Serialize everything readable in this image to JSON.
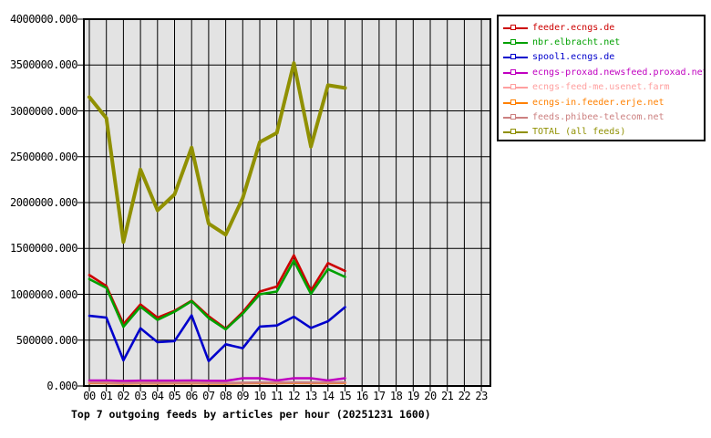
{
  "chart_data": {
    "type": "line",
    "title": "Top 7 outgoing feeds by articles per hour (20251231 1600)",
    "x": [
      "00",
      "01",
      "02",
      "03",
      "04",
      "05",
      "06",
      "07",
      "08",
      "09",
      "10",
      "11",
      "12",
      "13",
      "14",
      "15"
    ],
    "x_axis_tick_labels": [
      "00",
      "01",
      "02",
      "03",
      "04",
      "05",
      "06",
      "07",
      "08",
      "09",
      "10",
      "11",
      "12",
      "13",
      "14",
      "15",
      "16",
      "17",
      "18",
      "19",
      "20",
      "21",
      "22",
      "23"
    ],
    "y_axis_tick_labels": [
      "4000000.000",
      "3500000.000",
      "3000000.000",
      "2500000.000",
      "2000000.000",
      "1500000.000",
      "1000000.000",
      "500000.000",
      "0.000"
    ],
    "ylim": [
      0,
      4000000
    ],
    "grid": true,
    "legend_position": "outside-top-right",
    "plot_background": "#e3e3e3",
    "grid_color": "#000000",
    "series": [
      {
        "name": "feeder.ecngs.de",
        "color": "#cc0000",
        "values": [
          1210000,
          1090000,
          675000,
          890000,
          745000,
          820000,
          930000,
          760000,
          625000,
          805000,
          1030000,
          1085000,
          1425000,
          1040000,
          1340000,
          1255000
        ]
      },
      {
        "name": "nbr.elbracht.net",
        "color": "#00a000",
        "values": [
          1165000,
          1070000,
          645000,
          865000,
          720000,
          810000,
          925000,
          740000,
          618000,
          788000,
          1000000,
          1030000,
          1365000,
          1005000,
          1275000,
          1190000
        ]
      },
      {
        "name": "spool1.ecngs.de",
        "color": "#0000cc",
        "values": [
          765000,
          745000,
          280000,
          630000,
          478000,
          490000,
          770000,
          272000,
          455000,
          412000,
          648000,
          660000,
          755000,
          633000,
          705000,
          860000
        ]
      },
      {
        "name": "ecngs-proxad.newsfeed.proxad.net",
        "color": "#c000c0",
        "values": [
          60000,
          60000,
          55000,
          58000,
          58000,
          58000,
          60000,
          57000,
          56000,
          85000,
          85000,
          60000,
          85000,
          85000,
          60000,
          85000
        ]
      },
      {
        "name": "ecngs-feed-me.usenet.farm",
        "color": "#ff9f9f",
        "values": [
          36000,
          35000,
          30000,
          33000,
          32000,
          33000,
          35000,
          31000,
          30000,
          34000,
          36000,
          35000,
          37000,
          36000,
          36000,
          37000
        ]
      },
      {
        "name": "ecngs-in.feeder.erje.net",
        "color": "#ff8000",
        "values": [
          32000,
          31000,
          26000,
          29000,
          28000,
          29000,
          31000,
          27000,
          26000,
          30000,
          32000,
          31000,
          33000,
          32000,
          32000,
          33000
        ]
      },
      {
        "name": "feeds.phibee-telecom.net",
        "color": "#cc8080",
        "values": [
          38000,
          37000,
          31000,
          35000,
          34000,
          35000,
          37000,
          33000,
          32000,
          36000,
          38000,
          37000,
          39000,
          38000,
          38000,
          39000
        ]
      },
      {
        "name": "TOTAL (all feeds)",
        "color": "#909000",
        "values": [
          3150000,
          2920000,
          1570000,
          2360000,
          1915000,
          2090000,
          2600000,
          1770000,
          1650000,
          2050000,
          2660000,
          2760000,
          3520000,
          2610000,
          3280000,
          3250000
        ]
      }
    ]
  }
}
